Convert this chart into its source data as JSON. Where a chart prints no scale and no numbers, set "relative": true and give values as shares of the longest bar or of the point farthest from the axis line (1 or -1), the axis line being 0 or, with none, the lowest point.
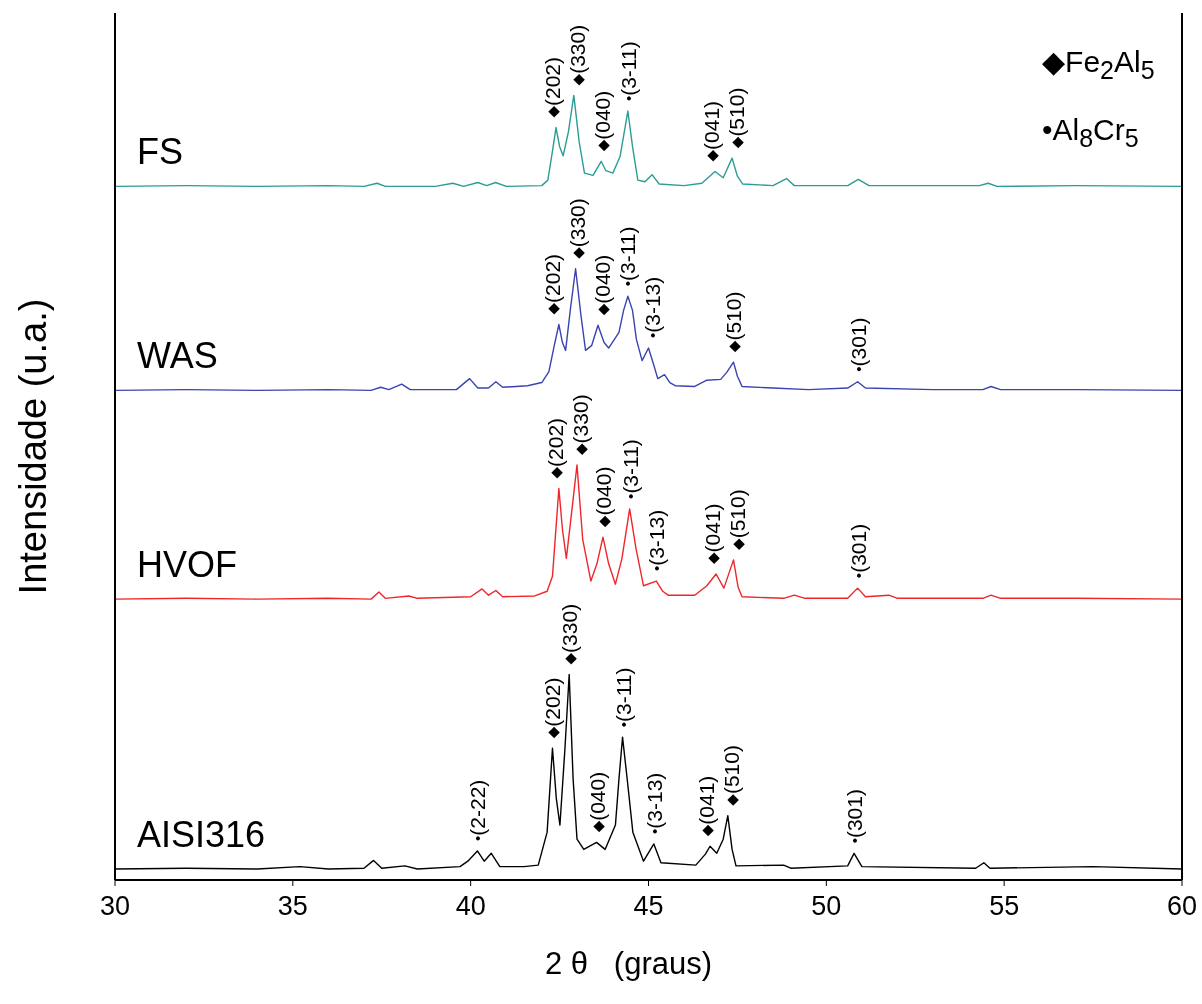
{
  "chart_data": {
    "type": "line",
    "relative": true,
    "xlabel": "2 θ   (graus)",
    "ylabel": "Intensidade (u.a.)",
    "xlim": [
      30,
      60
    ],
    "xticks": [
      30,
      35,
      40,
      45,
      50,
      55,
      60
    ],
    "series": [
      {
        "name": "FS",
        "color": "#2a9d94",
        "x": [
          30,
          32,
          34,
          36,
          37,
          37.37,
          37.6,
          39,
          39.5,
          39.8,
          40.2,
          40.45,
          40.7,
          41,
          42,
          42.17,
          42.3,
          42.4,
          42.5,
          42.6,
          42.75,
          42.9,
          43.05,
          43.2,
          43.44,
          43.67,
          43.8,
          44,
          44.2,
          44.42,
          44.55,
          44.7,
          44.9,
          45.1,
          45.3,
          46,
          46.5,
          46.87,
          47.1,
          47.35,
          47.5,
          47.65,
          48.5,
          48.88,
          49.1,
          50.6,
          50.9,
          51.2,
          54.3,
          54.55,
          54.8,
          57,
          60
        ],
        "values": [
          0.884,
          0.885,
          0.884,
          0.885,
          0.884,
          0.888,
          0.884,
          0.884,
          0.888,
          0.884,
          0.889,
          0.885,
          0.889,
          0.884,
          0.885,
          0.892,
          0.929,
          0.959,
          0.935,
          0.923,
          0.954,
          1,
          0.941,
          0.901,
          0.898,
          0.916,
          0.904,
          0.901,
          0.922,
          0.98,
          0.935,
          0.892,
          0.89,
          0.899,
          0.887,
          0.885,
          0.888,
          0.903,
          0.895,
          0.92,
          0.897,
          0.887,
          0.885,
          0.894,
          0.885,
          0.885,
          0.893,
          0.885,
          0.885,
          0.888,
          0.884,
          0.885,
          0.884
        ]
      },
      {
        "name": "WAS",
        "color": "#3a44b0",
        "x": [
          30,
          32,
          34,
          36,
          37.2,
          37.47,
          37.7,
          38.06,
          38.3,
          39.6,
          39.97,
          40.2,
          40.5,
          40.71,
          40.9,
          41.6,
          42,
          42.2,
          42.35,
          42.48,
          42.58,
          42.67,
          42.8,
          42.95,
          43.1,
          43.23,
          43.4,
          43.58,
          43.75,
          43.88,
          44.17,
          44.3,
          44.42,
          44.55,
          44.66,
          44.82,
          45,
          45.15,
          45.26,
          45.45,
          45.6,
          45.75,
          46.3,
          46.64,
          47.03,
          47.2,
          47.39,
          47.5,
          47.63,
          48.5,
          49.5,
          50.6,
          50.88,
          51.1,
          53,
          54.4,
          54.63,
          54.9,
          57,
          60
        ],
        "values": [
          0.624,
          0.625,
          0.624,
          0.625,
          0.624,
          0.628,
          0.625,
          0.632,
          0.625,
          0.625,
          0.639,
          0.627,
          0.627,
          0.635,
          0.628,
          0.63,
          0.634,
          0.648,
          0.681,
          0.708,
          0.685,
          0.675,
          0.726,
          0.779,
          0.72,
          0.675,
          0.681,
          0.707,
          0.685,
          0.678,
          0.698,
          0.726,
          0.744,
          0.726,
          0.689,
          0.662,
          0.678,
          0.656,
          0.639,
          0.644,
          0.634,
          0.63,
          0.629,
          0.637,
          0.638,
          0.647,
          0.66,
          0.642,
          0.629,
          0.627,
          0.625,
          0.627,
          0.635,
          0.627,
          0.625,
          0.625,
          0.629,
          0.625,
          0.625,
          0.624
        ]
      },
      {
        "name": "HVOF",
        "color": "#f0262a",
        "x": [
          30,
          32,
          34,
          36,
          37.2,
          37.42,
          37.6,
          38.26,
          38.5,
          40,
          40.32,
          40.5,
          40.71,
          40.9,
          41.8,
          42.15,
          42.3,
          42.48,
          42.58,
          42.69,
          42.85,
          42.99,
          43.15,
          43.38,
          43.55,
          43.72,
          43.88,
          44.07,
          44.25,
          44.47,
          44.65,
          44.86,
          45.22,
          45.4,
          45.55,
          46.3,
          46.64,
          46.9,
          47.12,
          47.39,
          47.52,
          47.63,
          48.8,
          49.1,
          49.4,
          50.6,
          50.88,
          51.1,
          51.76,
          52,
          54.4,
          54.63,
          54.9,
          57,
          60
        ],
        "values": [
          0.358,
          0.359,
          0.358,
          0.359,
          0.358,
          0.367,
          0.359,
          0.362,
          0.359,
          0.361,
          0.371,
          0.363,
          0.369,
          0.361,
          0.362,
          0.368,
          0.387,
          0.499,
          0.447,
          0.41,
          0.473,
          0.529,
          0.434,
          0.381,
          0.403,
          0.437,
          0.403,
          0.377,
          0.409,
          0.473,
          0.422,
          0.375,
          0.381,
          0.368,
          0.363,
          0.363,
          0.375,
          0.39,
          0.372,
          0.408,
          0.373,
          0.361,
          0.359,
          0.363,
          0.359,
          0.359,
          0.372,
          0.361,
          0.363,
          0.359,
          0.359,
          0.363,
          0.359,
          0.359,
          0.358
        ]
      },
      {
        "name": "AISI316",
        "color": "#000000",
        "x": [
          30,
          32,
          34,
          35.2,
          36,
          37,
          37.27,
          37.5,
          38.15,
          38.5,
          39.7,
          39.92,
          40.19,
          40.38,
          40.58,
          40.82,
          41.5,
          41.9,
          42.15,
          42.3,
          42.41,
          42.51,
          42.65,
          42.77,
          42.88,
          42.99,
          43.18,
          43.54,
          43.78,
          44.07,
          44.17,
          44.27,
          44.4,
          44.56,
          44.86,
          45.15,
          45.35,
          46.33,
          46.6,
          46.73,
          46.92,
          47.1,
          47.23,
          47.35,
          47.46,
          48.8,
          49,
          50.6,
          50.78,
          51,
          54.2,
          54.43,
          54.6,
          57.5,
          60
        ],
        "values": [
          0.014,
          0.015,
          0.014,
          0.017,
          0.014,
          0.015,
          0.025,
          0.015,
          0.018,
          0.014,
          0.017,
          0.024,
          0.037,
          0.024,
          0.034,
          0.017,
          0.017,
          0.019,
          0.061,
          0.168,
          0.103,
          0.07,
          0.167,
          0.262,
          0.129,
          0.052,
          0.039,
          0.048,
          0.039,
          0.07,
          0.129,
          0.182,
          0.129,
          0.061,
          0.024,
          0.046,
          0.022,
          0.019,
          0.033,
          0.043,
          0.034,
          0.052,
          0.082,
          0.039,
          0.018,
          0.019,
          0.015,
          0.018,
          0.034,
          0.017,
          0.015,
          0.022,
          0.015,
          0.017,
          0.014
        ]
      }
    ],
    "annotations": [
      "◆Fe$_{2}$Al$_{5}$",
      "•Al$_{8}$Cr$_{5}$",
      {
        "text": "◆(202)",
        "x": 42.4,
        "y": 0.959
      },
      {
        "text": "◆(330)",
        "x": 42.9,
        "y": 1
      },
      {
        "text": "◆(040)",
        "x": 43.67,
        "y": 0.916
      },
      {
        "text": "•(3-11)",
        "x": 44.42,
        "y": 0.98
      },
      {
        "text": "◆(041)",
        "x": 46.87,
        "y": 0.903
      },
      {
        "text": "◆(510)",
        "x": 47.35,
        "y": 0.92
      },
      {
        "text": "◆(202)",
        "x": 42.48,
        "y": 0.708
      },
      {
        "text": "◆(330)",
        "x": 42.95,
        "y": 0.779
      },
      {
        "text": "◆(040)",
        "x": 43.58,
        "y": 0.707
      },
      {
        "text": "•(3-11)",
        "x": 44.42,
        "y": 0.744
      },
      {
        "text": "•(3-13)",
        "x": 45,
        "y": 0.678
      },
      {
        "text": "◆(510)",
        "x": 47.39,
        "y": 0.66
      },
      {
        "text": "•(301)",
        "x": 50.88,
        "y": 0.635
      },
      {
        "text": "◆(202)",
        "x": 42.48,
        "y": 0.499
      },
      {
        "text": "◆(330)",
        "x": 42.99,
        "y": 0.529
      },
      {
        "text": "◆(040)",
        "x": 43.72,
        "y": 0.437
      },
      {
        "text": "•(3-11)",
        "x": 44.47,
        "y": 0.473
      },
      {
        "text": "•(3-13)",
        "x": 45.22,
        "y": 0.381
      },
      {
        "text": "◆(041)",
        "x": 46.9,
        "y": 0.39
      },
      {
        "text": "◆(510)",
        "x": 47.39,
        "y": 0.408
      },
      {
        "text": "•(301)",
        "x": 50.88,
        "y": 0.372
      },
      {
        "text": "•(2-22)",
        "x": 40.19,
        "y": 0.037
      },
      {
        "text": "◆(202)",
        "x": 42.3,
        "y": 0.168
      },
      {
        "text": "◆(330)",
        "x": 42.77,
        "y": 0.262
      },
      {
        "text": "◆(040)",
        "x": 43.54,
        "y": 0.048
      },
      {
        "text": "•(3-11)",
        "x": 44.27,
        "y": 0.182
      },
      {
        "text": "•(3-13)",
        "x": 45.15,
        "y": 0.046
      },
      {
        "text": "◆(041)",
        "x": 46.73,
        "y": 0.043
      },
      {
        "text": "◆(510)",
        "x": 47.23,
        "y": 0.082
      },
      {
        "text": "•(301)",
        "x": 50.78,
        "y": 0.034
      }
    ]
  }
}
